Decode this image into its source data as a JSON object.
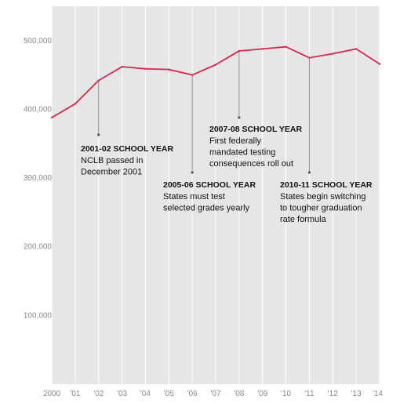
{
  "chart_data": {
    "type": "line",
    "title": "",
    "xlabel": "",
    "ylabel": "",
    "x": [
      "2000",
      "'01",
      "'02",
      "'03",
      "'04",
      "'05",
      "'06",
      "'07",
      "'08",
      "'09",
      "'10",
      "'11",
      "'12",
      "'13",
      "'14"
    ],
    "x_ticks": [
      "2000",
      "'01",
      "'02",
      "'03",
      "'04",
      "'05",
      "'06",
      "'07",
      "'08",
      "'09",
      "'10",
      "'11",
      "'12",
      "'13",
      "'14"
    ],
    "ylim": [
      0,
      550000
    ],
    "y_ticks": [
      {
        "value": 100000,
        "label": "100,000"
      },
      {
        "value": 200000,
        "label": "200,000"
      },
      {
        "value": 300000,
        "label": "300,000"
      },
      {
        "value": 400000,
        "label": "400,000"
      },
      {
        "value": 500000,
        "label": "500,000"
      }
    ],
    "grid": "vertical",
    "line_color": "#d6264f",
    "background_color": "#e6e6e6",
    "series": [
      {
        "values": [
          388000,
          408000,
          442000,
          462000,
          459000,
          458000,
          450000,
          465000,
          485000,
          488000,
          491000,
          475000,
          481000,
          488000,
          466000
        ]
      }
    ],
    "annotations": [
      {
        "x_index": 2,
        "title": "2001-02 SCHOOL YEAR",
        "lines": [
          "NCLB passed in",
          "December 2001"
        ]
      },
      {
        "x_index": 6,
        "title": "2005-06 SCHOOL YEAR",
        "lines": [
          "States must test",
          "selected grades yearly"
        ]
      },
      {
        "x_index": 8,
        "title": "2007-08 SCHOOL YEAR",
        "lines": [
          "First federally",
          "mandated testing",
          "consequences roll out"
        ]
      },
      {
        "x_index": 11,
        "title": "2010-11 SCHOOL YEAR",
        "lines": [
          "States begin switching",
          "to tougher graduation",
          "rate formula"
        ]
      }
    ]
  }
}
